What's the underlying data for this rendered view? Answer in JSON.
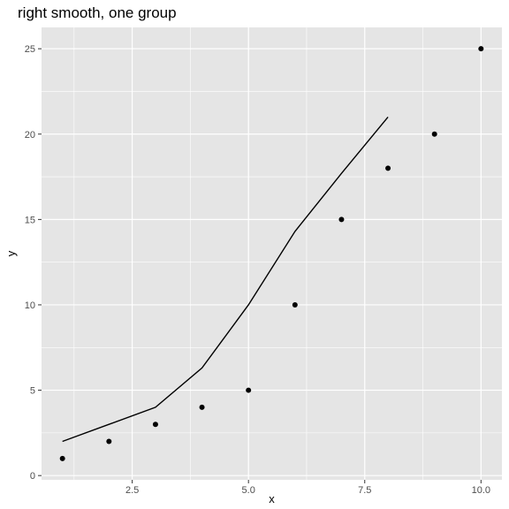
{
  "chart_data": {
    "type": "scatter",
    "title": "right smooth, one group",
    "xlabel": "x",
    "ylabel": "y",
    "xlim": [
      0.55,
      10.45
    ],
    "ylim": [
      -0.25,
      26.25
    ],
    "x_ticks": [
      2.5,
      5.0,
      7.5,
      10.0
    ],
    "x_tick_labels": [
      "2.5",
      "5.0",
      "7.5",
      "10.0"
    ],
    "y_ticks": [
      0,
      5,
      10,
      15,
      20,
      25
    ],
    "y_tick_labels": [
      "0",
      "5",
      "10",
      "15",
      "20",
      "25"
    ],
    "grid": true,
    "points": {
      "x": [
        1,
        2,
        3,
        4,
        5,
        6,
        7,
        8,
        9,
        10
      ],
      "y": [
        1,
        2,
        3,
        4,
        5,
        10,
        15,
        18,
        20,
        25
      ]
    },
    "smooth_line": {
      "x": [
        1,
        2,
        3,
        4,
        5,
        6,
        7,
        8
      ],
      "y": [
        2,
        3,
        4,
        6.3,
        10,
        14.3,
        17.7,
        21
      ]
    },
    "colors": {
      "panel": "#e5e5e5",
      "grid": "#ffffff",
      "points": "#000000",
      "line": "#000000"
    }
  }
}
